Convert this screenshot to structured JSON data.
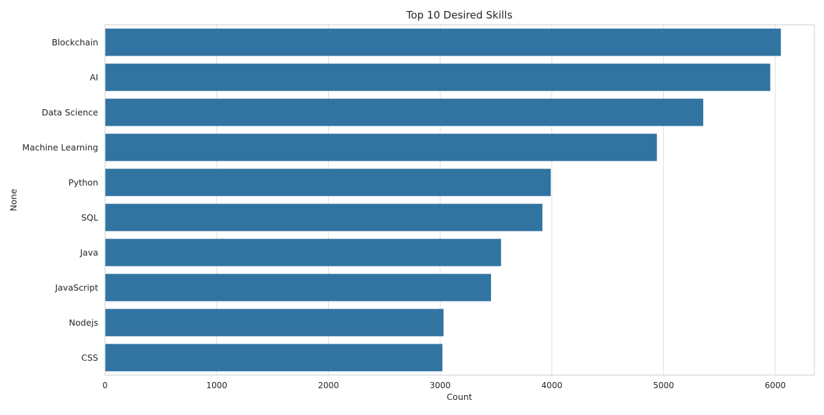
{
  "chart_data": {
    "type": "bar",
    "orientation": "horizontal",
    "title": "Top 10 Desired Skills",
    "xlabel": "Count",
    "ylabel": "None",
    "categories": [
      "Blockchain",
      "AI",
      "Data Science",
      "Machine Learning",
      "Python",
      "SQL",
      "Java",
      "JavaScript",
      "Nodejs",
      "CSS"
    ],
    "values": [
      6050,
      5955,
      5355,
      4940,
      3990,
      3915,
      3545,
      3455,
      3030,
      3020
    ],
    "xlim": [
      0,
      6350
    ],
    "xticks": [
      0,
      1000,
      2000,
      3000,
      4000,
      5000,
      6000
    ],
    "grid": true,
    "bar_color": "#3274a1",
    "grid_color": "#dddddd",
    "spine_color": "#cccccc"
  }
}
